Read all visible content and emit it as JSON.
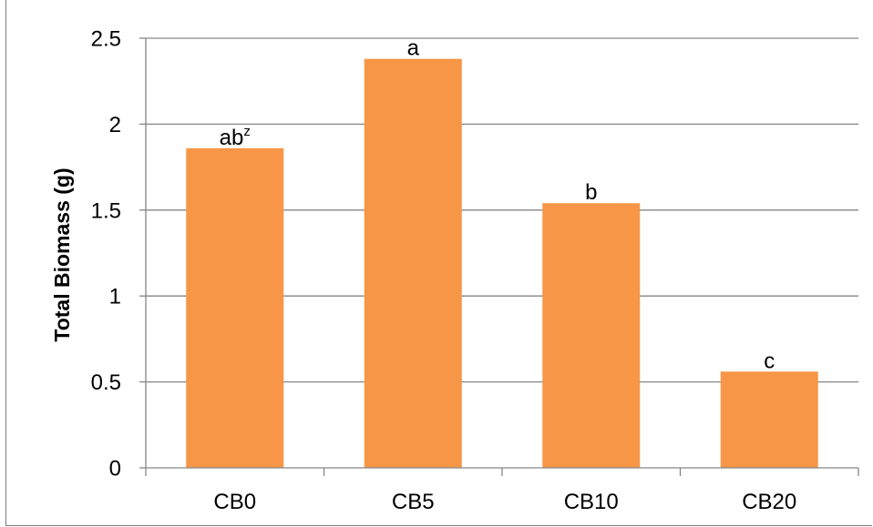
{
  "chart_data": {
    "type": "bar",
    "categories": [
      "CB0",
      "CB5",
      "CB10",
      "CB20"
    ],
    "values": [
      1.86,
      2.38,
      1.54,
      0.56
    ],
    "bar_labels": [
      {
        "text": "ab",
        "sup": "z"
      },
      {
        "text": "a",
        "sup": ""
      },
      {
        "text": "b",
        "sup": ""
      },
      {
        "text": "c",
        "sup": ""
      }
    ],
    "title": "",
    "xlabel": "",
    "ylabel": "Total Biomass (g)",
    "ylim": [
      0,
      2.5
    ],
    "yticks": [
      "0",
      "0.5",
      "1",
      "1.5",
      "2",
      "2.5"
    ],
    "ytick_values": [
      0,
      0.5,
      1,
      1.5,
      2,
      2.5
    ],
    "grid": "horizontal",
    "legend": "none",
    "colors": {
      "bar": "#F79646",
      "grid": "#868686",
      "axis": "#868686"
    }
  }
}
